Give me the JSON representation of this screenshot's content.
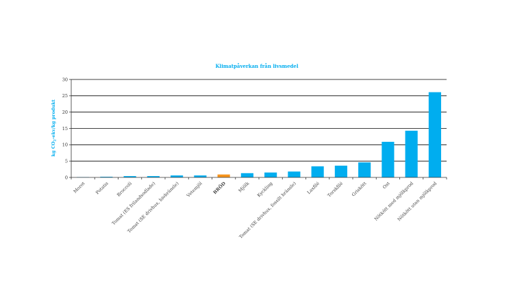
{
  "chart_data": {
    "type": "bar",
    "title": "Klimatpåverkan från livsmedel",
    "ylabel_main": "kg CO",
    "ylabel_sub": "2",
    "ylabel_rest": "-ekv/kg produkt",
    "xlabel": "",
    "ylim": [
      0,
      30
    ],
    "yticks": [
      0,
      5,
      10,
      15,
      20,
      25,
      30
    ],
    "grid": true,
    "categories": [
      "Morot",
      "Potatis",
      "Broccoli",
      "Tomat (ES frilandsodlade)",
      "Tomat (SE drivhus, biobränsle)",
      "Vetemjöl",
      "BRÖD",
      "Mjölk",
      "Kyckling",
      "Tomat (SE drivhus, fossilt bränsle)",
      "Laxfilé",
      "Torskfilé",
      "Griskött",
      "Ost",
      "Nötkött med mjölkprod",
      "Nötkött utan mjölkprod"
    ],
    "highlight_category": "BRÖD",
    "values": [
      0.1,
      0.2,
      0.4,
      0.4,
      0.6,
      0.6,
      0.9,
      1.3,
      1.5,
      1.8,
      3.4,
      3.6,
      4.6,
      10.9,
      14.3,
      26.1
    ],
    "colors": {
      "bar": "#00adef",
      "highlight_bar": "#f7941d",
      "title": "#00adef",
      "ylabel": "#00adef",
      "highlight_label": "#f7941d",
      "axis": "#333333",
      "grid": "#000000"
    }
  }
}
